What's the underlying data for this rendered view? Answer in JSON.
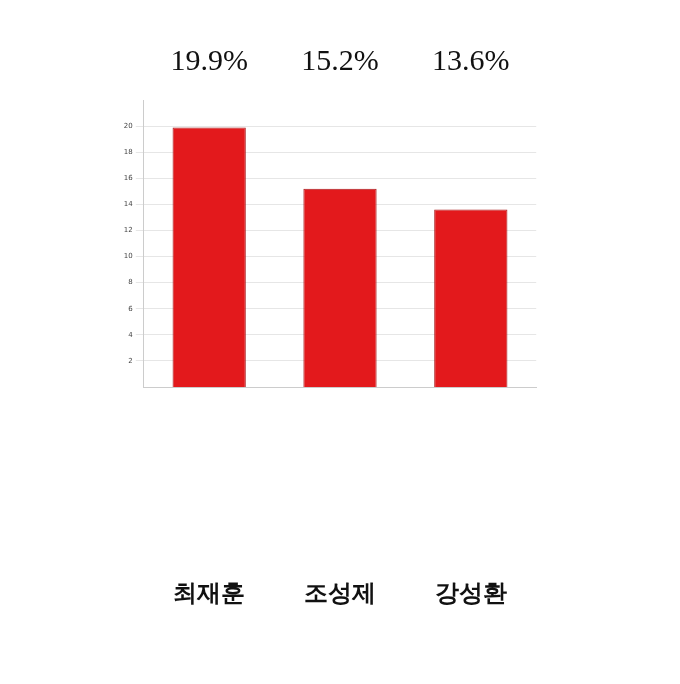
{
  "chart_data": {
    "type": "bar",
    "categories": [
      "최재훈",
      "조성제",
      "강성환"
    ],
    "values": [
      19.9,
      15.2,
      13.6
    ],
    "value_labels": [
      "19.9%",
      "15.2%",
      "13.6%"
    ],
    "data_labels": true,
    "color": "#e3191c",
    "ylim": [
      0,
      22
    ],
    "yticks": [
      2,
      4,
      6,
      8,
      10,
      12,
      14,
      16,
      18,
      20
    ],
    "grid": true
  }
}
